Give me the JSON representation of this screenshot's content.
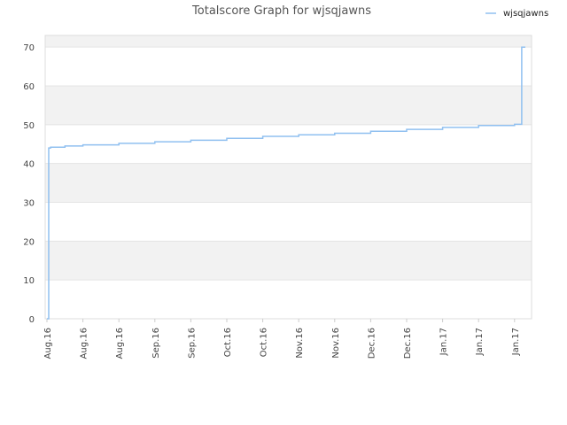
{
  "chart_data": {
    "type": "line",
    "title": "Totalscore Graph for wjsqjawns",
    "xlabel": "",
    "ylabel": "",
    "ylim": [
      0,
      73
    ],
    "y_ticks": [
      0,
      10,
      20,
      30,
      40,
      50,
      60,
      70
    ],
    "x_tick_labels": [
      "Aug.16",
      "Aug.16",
      "Aug.16",
      "Sep.16",
      "Sep.16",
      "Oct.16",
      "Oct.16",
      "Nov.16",
      "Nov.16",
      "Dec.16",
      "Dec.16",
      "Jan.17",
      "Jan.17",
      "Jan.17"
    ],
    "grid": true,
    "legend_position": "top-right",
    "series": [
      {
        "name": "wjsqjawns",
        "color": "#90c0f0",
        "x": [
          0,
          0.05,
          0.1,
          0.5,
          1,
          2,
          3,
          4,
          5,
          6,
          7,
          8,
          9,
          10,
          11,
          12,
          13,
          13.2,
          13.2,
          13.3
        ],
        "y": [
          0,
          44,
          44.2,
          44.5,
          44.8,
          45.2,
          45.6,
          46.0,
          46.5,
          47.0,
          47.4,
          47.8,
          48.3,
          48.8,
          49.3,
          49.8,
          50.1,
          50.2,
          70,
          70
        ]
      }
    ]
  }
}
